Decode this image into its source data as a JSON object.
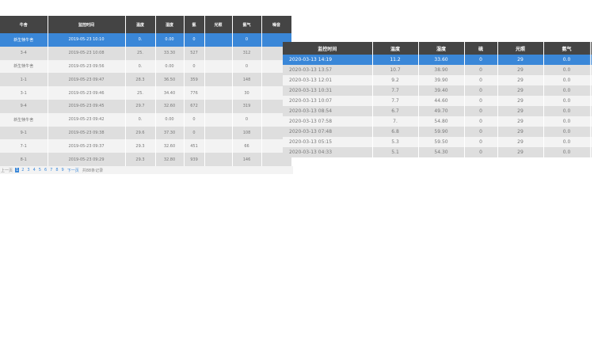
{
  "left_table": {
    "headers": [
      "牛舍",
      "监控时间",
      "温度",
      "湿度",
      "氨",
      "光照",
      "氨气",
      "噪音"
    ],
    "rows": [
      [
        "新生犊牛舍",
        "2019-05-23 10:10",
        "0.",
        "0.00",
        "0",
        "",
        "0",
        ""
      ],
      [
        "3-4",
        "2019-05-23 10:08",
        "25.",
        "33.30",
        "527",
        "",
        "312",
        ""
      ],
      [
        "新生犊牛舍",
        "2019-05-23 09:56",
        "0.",
        "0.00",
        "0",
        "",
        "0",
        ""
      ],
      [
        "1-1",
        "2019-05-23 09:47",
        "28.3",
        "36.50",
        "359",
        "",
        "148",
        ""
      ],
      [
        "3-1",
        "2019-05-23 09:46",
        "25.",
        "34.40",
        "776",
        "",
        "30",
        ""
      ],
      [
        "9-4",
        "2019-05-23 09:45",
        "29.7",
        "32.60",
        "672",
        "",
        "319",
        ""
      ],
      [
        "新生犊牛舍",
        "2019-05-23 09:42",
        "0.",
        "0.00",
        "0",
        "",
        "0",
        ""
      ],
      [
        "9-1",
        "2019-05-23 09:38",
        "29.6",
        "37.30",
        "0",
        "",
        "108",
        ""
      ],
      [
        "7-1",
        "2019-05-23 09:37",
        "29.3",
        "32.60",
        "451",
        "",
        "66",
        ""
      ],
      [
        "8-1",
        "2019-05-23 09:29",
        "29.3",
        "32.80",
        "939",
        "",
        "146",
        ""
      ]
    ],
    "selected_row": 0,
    "pager": {
      "prev": "上一页",
      "pages": [
        "1",
        "2",
        "3",
        "4",
        "5",
        "6",
        "7",
        "8",
        "9"
      ],
      "current": "1",
      "next": "下一页",
      "total": "共88条记录"
    }
  },
  "right_table": {
    "headers": [
      "监控时间",
      "温度",
      "湿度",
      "硫",
      "光照",
      "氨气"
    ],
    "rows": [
      [
        "2020-03-13 14:19",
        "11.2",
        "33.60",
        "0",
        "29",
        "0.0"
      ],
      [
        "2020-03-13 13:57",
        "10.7",
        "38.90",
        "0",
        "29",
        "0.0"
      ],
      [
        "2020-03-13 12:01",
        "9.2",
        "39.90",
        "0",
        "29",
        "0.0"
      ],
      [
        "2020-03-13 10:31",
        "7.7",
        "39.40",
        "0",
        "29",
        "0.0"
      ],
      [
        "2020-03-13 10:07",
        "7.7",
        "44.60",
        "0",
        "29",
        "0.0"
      ],
      [
        "2020-03-13 08:54",
        "6.7",
        "49.70",
        "0",
        "29",
        "0.0"
      ],
      [
        "2020-03-13 07:58",
        "7.",
        "54.80",
        "0",
        "29",
        "0.0"
      ],
      [
        "2020-03-13 07:48",
        "6.8",
        "59.90",
        "0",
        "29",
        "0.0"
      ],
      [
        "2020-03-13 05:15",
        "5.3",
        "59.50",
        "0",
        "29",
        "0.0"
      ],
      [
        "2020-03-13 04:33",
        "5.1",
        "54.30",
        "0",
        "29",
        "0.0"
      ]
    ],
    "selected_row": 0
  },
  "colors": {
    "header": "#444444",
    "selected": "#3a87d8",
    "row_odd": "#dedede",
    "row_even": "#f3f3f3"
  }
}
